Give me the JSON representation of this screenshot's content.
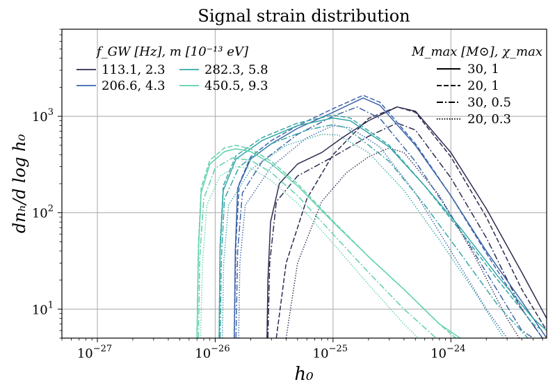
{
  "chart_data": {
    "type": "line",
    "title": "Signal strain distribution",
    "xlabel": "h₀",
    "ylabel": "dnₕ/d log h₀",
    "xscale": "log",
    "yscale": "log",
    "xlim": [
      5e-28,
      6.5e-24
    ],
    "ylim": [
      5,
      8000
    ],
    "grid": true,
    "x_ticks": [
      {
        "base": "10",
        "exp": "−27",
        "value": 1e-27
      },
      {
        "base": "10",
        "exp": "−26",
        "value": 1e-26
      },
      {
        "base": "10",
        "exp": "−25",
        "value": 1e-25
      },
      {
        "base": "10",
        "exp": "−24",
        "value": 1e-24
      }
    ],
    "y_ticks": [
      {
        "base": "10",
        "exp": "1",
        "value": 10
      },
      {
        "base": "10",
        "exp": "2",
        "value": 100
      },
      {
        "base": "10",
        "exp": "3",
        "value": 1000
      }
    ],
    "legend_frequency": {
      "title": "f_GW [Hz], m [10⁻¹³ eV]",
      "placement": "top-left",
      "entries": [
        {
          "label": "113.1, 2.3",
          "color": "#2d2a4f"
        },
        {
          "label": "206.6, 4.3",
          "color": "#3d63a8"
        },
        {
          "label": "282.3, 5.8",
          "color": "#35a6a6"
        },
        {
          "label": "450.5, 9.3",
          "color": "#5fd1ad"
        }
      ]
    },
    "legend_bh": {
      "title": "M_max [M⊙], χ_max",
      "placement": "top-right",
      "entries": [
        {
          "label": "30, 1",
          "dash": "solid"
        },
        {
          "label": "20, 1",
          "dash": "dashed"
        },
        {
          "label": "30, 0.5",
          "dash": "dashdot"
        },
        {
          "label": "20, 0.3",
          "dash": "dotted"
        }
      ]
    },
    "series": [
      {
        "name": "113.1, 2.3 | 30, 1",
        "color": "#2d2a4f",
        "dash": "solid",
        "points": [
          [
            2.75e-26,
            5
          ],
          [
            2.8e-26,
            20
          ],
          [
            2.95e-26,
            80
          ],
          [
            3.5e-26,
            200
          ],
          [
            5e-26,
            320
          ],
          [
            8e-26,
            420
          ],
          [
            1.2e-25,
            600
          ],
          [
            2e-25,
            900
          ],
          [
            3.5e-25,
            1250
          ],
          [
            5e-25,
            1130
          ],
          [
            1e-24,
            420
          ],
          [
            2e-24,
            110
          ],
          [
            4e-24,
            24
          ],
          [
            6.5e-24,
            8
          ]
        ]
      },
      {
        "name": "113.1, 2.3 | 20, 1",
        "color": "#2d2a4f",
        "dash": "dashed",
        "points": [
          [
            3.3e-26,
            5
          ],
          [
            4e-26,
            30
          ],
          [
            6e-26,
            140
          ],
          [
            1e-25,
            400
          ],
          [
            2e-25,
            950
          ],
          [
            3.5e-25,
            1250
          ],
          [
            5e-25,
            1100
          ],
          [
            1e-24,
            380
          ],
          [
            2e-24,
            90
          ],
          [
            4e-24,
            16
          ],
          [
            6.5e-24,
            6
          ]
        ]
      },
      {
        "name": "113.1, 2.3 | 30, 0.5",
        "color": "#2d2a4f",
        "dash": "dashdot",
        "points": [
          [
            2.8e-26,
            5
          ],
          [
            2.9e-26,
            30
          ],
          [
            3.3e-26,
            130
          ],
          [
            5e-26,
            240
          ],
          [
            1e-25,
            380
          ],
          [
            2e-25,
            620
          ],
          [
            3.5e-25,
            850
          ],
          [
            5e-25,
            720
          ],
          [
            1e-24,
            230
          ],
          [
            2e-24,
            55
          ],
          [
            4e-24,
            10
          ],
          [
            6e-24,
            5
          ]
        ]
      },
      {
        "name": "113.1, 2.3 | 20, 0.3",
        "color": "#2d2a4f",
        "dash": "dotted",
        "points": [
          [
            4e-26,
            5
          ],
          [
            5e-26,
            30
          ],
          [
            8e-26,
            130
          ],
          [
            1.3e-25,
            260
          ],
          [
            2e-25,
            380
          ],
          [
            3e-25,
            470
          ],
          [
            4e-25,
            420
          ],
          [
            8e-25,
            150
          ],
          [
            1.6e-24,
            35
          ],
          [
            3e-24,
            8
          ],
          [
            3.8e-24,
            5
          ]
        ]
      },
      {
        "name": "206.6, 4.3 | 30, 1",
        "color": "#3d63a8",
        "dash": "solid",
        "points": [
          [
            1.45e-26,
            5
          ],
          [
            1.48e-26,
            40
          ],
          [
            1.55e-26,
            180
          ],
          [
            2e-26,
            360
          ],
          [
            3e-26,
            520
          ],
          [
            5e-26,
            750
          ],
          [
            1e-25,
            1100
          ],
          [
            1.8e-25,
            1550
          ],
          [
            2.5e-25,
            1300
          ],
          [
            5e-25,
            500
          ],
          [
            1e-24,
            150
          ],
          [
            2e-24,
            40
          ],
          [
            4e-24,
            12
          ],
          [
            6.5e-24,
            5
          ]
        ]
      },
      {
        "name": "206.6, 4.3 | 20, 1",
        "color": "#3d63a8",
        "dash": "dashed",
        "points": [
          [
            1.45e-26,
            5
          ],
          [
            1.5e-26,
            50
          ],
          [
            1.6e-26,
            200
          ],
          [
            2e-26,
            380
          ],
          [
            3e-26,
            560
          ],
          [
            5e-26,
            800
          ],
          [
            1e-25,
            1200
          ],
          [
            1.8e-25,
            1650
          ],
          [
            2.5e-25,
            1400
          ],
          [
            5e-25,
            520
          ],
          [
            1e-24,
            150
          ],
          [
            2e-24,
            38
          ],
          [
            4e-24,
            10
          ],
          [
            6e-24,
            5
          ]
        ]
      },
      {
        "name": "206.6, 4.3 | 30, 0.5",
        "color": "#3d63a8",
        "dash": "dashdot",
        "points": [
          [
            1.5e-26,
            5
          ],
          [
            1.55e-26,
            40
          ],
          [
            1.7e-26,
            160
          ],
          [
            2.5e-26,
            340
          ],
          [
            5e-26,
            650
          ],
          [
            1e-25,
            1000
          ],
          [
            1.6e-25,
            1250
          ],
          [
            2.5e-25,
            950
          ],
          [
            5e-25,
            340
          ],
          [
            1e-24,
            95
          ],
          [
            2e-24,
            24
          ],
          [
            4e-24,
            6
          ],
          [
            5e-24,
            5
          ]
        ]
      },
      {
        "name": "206.6, 4.3 | 20, 0.3",
        "color": "#3d63a8",
        "dash": "dotted",
        "points": [
          [
            1.58e-26,
            5
          ],
          [
            1.62e-26,
            30
          ],
          [
            1.8e-26,
            120
          ],
          [
            3e-26,
            300
          ],
          [
            6e-26,
            600
          ],
          [
            1e-25,
            800
          ],
          [
            1.4e-25,
            760
          ],
          [
            2.5e-25,
            480
          ],
          [
            5e-25,
            160
          ],
          [
            1e-24,
            40
          ],
          [
            2e-24,
            10
          ],
          [
            3e-24,
            5
          ]
        ]
      },
      {
        "name": "282.3, 5.8 | 30, 1",
        "color": "#35a6a6",
        "dash": "solid",
        "points": [
          [
            1.08e-26,
            5
          ],
          [
            1.1e-26,
            40
          ],
          [
            1.17e-26,
            170
          ],
          [
            1.5e-26,
            360
          ],
          [
            2.5e-26,
            560
          ],
          [
            5e-26,
            800
          ],
          [
            1e-25,
            960
          ],
          [
            1.4e-25,
            900
          ],
          [
            3e-25,
            480
          ],
          [
            6e-25,
            190
          ],
          [
            1.2e-24,
            70
          ],
          [
            2.5e-24,
            22
          ],
          [
            5e-24,
            8
          ],
          [
            6.5e-24,
            6
          ]
        ]
      },
      {
        "name": "282.3, 5.8 | 20, 1",
        "color": "#35a6a6",
        "dash": "dashed",
        "points": [
          [
            1.08e-26,
            5
          ],
          [
            1.1e-26,
            45
          ],
          [
            1.17e-26,
            190
          ],
          [
            1.5e-26,
            390
          ],
          [
            2.5e-26,
            600
          ],
          [
            5e-26,
            850
          ],
          [
            1e-25,
            1030
          ],
          [
            1.4e-25,
            960
          ],
          [
            3e-25,
            500
          ],
          [
            6e-25,
            190
          ],
          [
            1.2e-24,
            65
          ],
          [
            2.5e-24,
            20
          ],
          [
            5e-24,
            7
          ],
          [
            6e-24,
            6
          ]
        ]
      },
      {
        "name": "282.3, 5.8 | 30, 0.5",
        "color": "#35a6a6",
        "dash": "dashdot",
        "points": [
          [
            1.1e-26,
            5
          ],
          [
            1.13e-26,
            35
          ],
          [
            1.2e-26,
            140
          ],
          [
            1.6e-26,
            300
          ],
          [
            3e-26,
            520
          ],
          [
            6e-26,
            720
          ],
          [
            1e-25,
            820
          ],
          [
            1.3e-25,
            760
          ],
          [
            3e-25,
            340
          ],
          [
            6e-25,
            120
          ],
          [
            1.2e-24,
            38
          ],
          [
            2.5e-24,
            11
          ],
          [
            4.5e-24,
            5
          ]
        ]
      },
      {
        "name": "282.3, 5.8 | 20, 0.3",
        "color": "#35a6a6",
        "dash": "dotted",
        "points": [
          [
            1.15e-26,
            5
          ],
          [
            1.18e-26,
            30
          ],
          [
            1.3e-26,
            120
          ],
          [
            2e-26,
            280
          ],
          [
            4e-26,
            500
          ],
          [
            8e-26,
            650
          ],
          [
            1.1e-25,
            640
          ],
          [
            2e-25,
            420
          ],
          [
            4e-25,
            170
          ],
          [
            8e-25,
            52
          ],
          [
            1.6e-24,
            15
          ],
          [
            2.8e-24,
            5
          ]
        ]
      },
      {
        "name": "450.5, 9.3 | 30, 1",
        "color": "#5fd1ad",
        "dash": "solid",
        "points": [
          [
            7e-27,
            5
          ],
          [
            7.2e-27,
            40
          ],
          [
            7.6e-27,
            160
          ],
          [
            9e-27,
            320
          ],
          [
            1.2e-26,
            430
          ],
          [
            1.5e-26,
            460
          ],
          [
            2e-26,
            430
          ],
          [
            3e-26,
            320
          ],
          [
            5e-26,
            190
          ],
          [
            1e-25,
            80
          ],
          [
            2e-25,
            35
          ],
          [
            4e-25,
            16
          ],
          [
            8e-25,
            7
          ],
          [
            1.2e-24,
            5
          ]
        ]
      },
      {
        "name": "450.5, 9.3 | 20, 1",
        "color": "#5fd1ad",
        "dash": "dashed",
        "points": [
          [
            7e-27,
            5
          ],
          [
            7.2e-27,
            45
          ],
          [
            7.6e-27,
            180
          ],
          [
            9e-27,
            350
          ],
          [
            1.2e-26,
            470
          ],
          [
            1.5e-26,
            500
          ],
          [
            2e-26,
            460
          ],
          [
            3e-26,
            340
          ],
          [
            5e-26,
            200
          ],
          [
            1e-25,
            82
          ],
          [
            2e-25,
            35
          ],
          [
            4e-25,
            16
          ],
          [
            8e-25,
            7
          ],
          [
            1.1e-24,
            5
          ]
        ]
      },
      {
        "name": "450.5, 9.3 | 30, 0.5",
        "color": "#5fd1ad",
        "dash": "dashdot",
        "points": [
          [
            7.2e-27,
            5
          ],
          [
            7.4e-27,
            35
          ],
          [
            8e-27,
            140
          ],
          [
            1e-26,
            290
          ],
          [
            1.4e-26,
            370
          ],
          [
            2e-26,
            350
          ],
          [
            3e-26,
            260
          ],
          [
            5e-26,
            150
          ],
          [
            1e-25,
            60
          ],
          [
            2e-25,
            24
          ],
          [
            4e-25,
            10
          ],
          [
            7.5e-25,
            5
          ]
        ]
      },
      {
        "name": "450.5, 9.3 | 20, 0.3",
        "color": "#5fd1ad",
        "dash": "dotted",
        "points": [
          [
            7.5e-27,
            5
          ],
          [
            7.8e-27,
            30
          ],
          [
            8.5e-27,
            120
          ],
          [
            1.1e-26,
            240
          ],
          [
            1.5e-26,
            300
          ],
          [
            2e-26,
            290
          ],
          [
            3e-26,
            215
          ],
          [
            5e-26,
            125
          ],
          [
            1e-25,
            48
          ],
          [
            2e-25,
            18
          ],
          [
            4e-25,
            7
          ],
          [
            5.3e-25,
            5
          ]
        ]
      }
    ]
  }
}
